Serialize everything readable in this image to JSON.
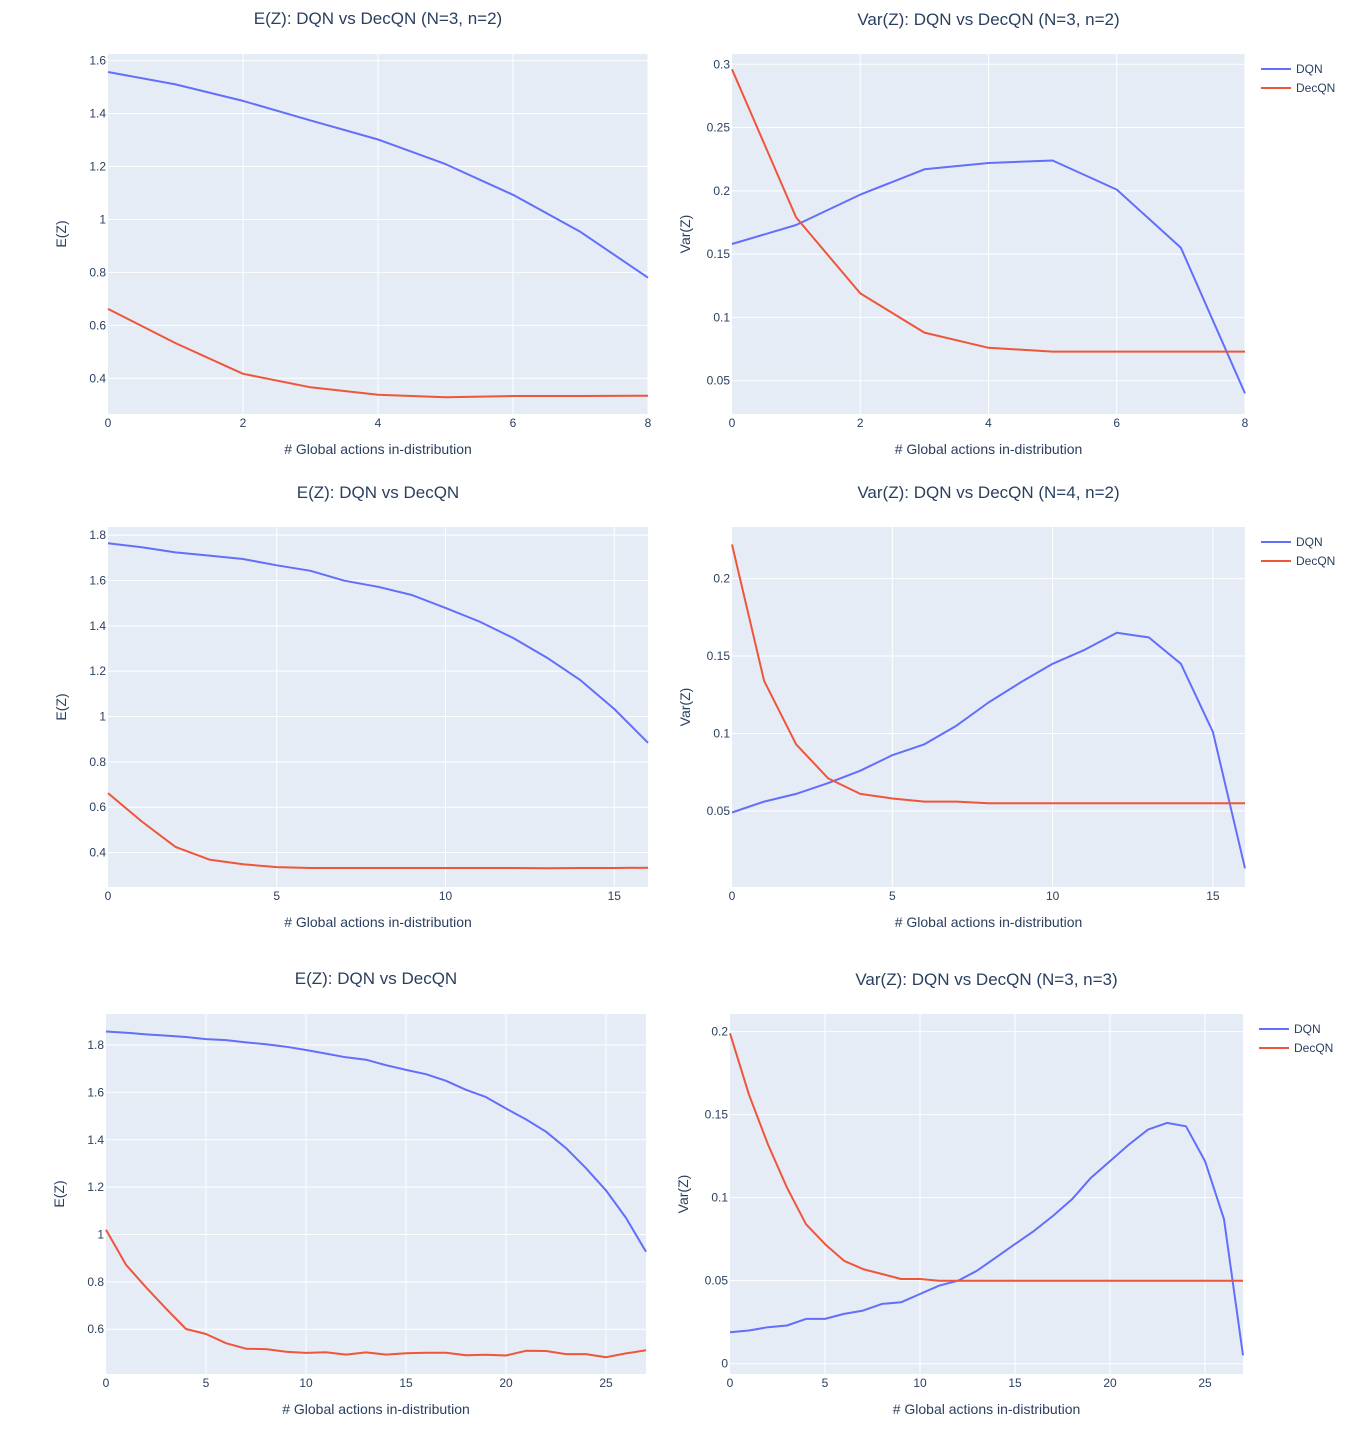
{
  "chart_data": [
    {
      "type": "line",
      "title": "E(Z): DQN vs DecQN (N=3, n=2)",
      "xlabel": "# Global actions in-distribution",
      "ylabel": "E(Z)",
      "xlim": [
        0,
        8
      ],
      "ylim": [
        0.265,
        1.625
      ],
      "xticks": [
        0,
        2,
        4,
        6,
        8
      ],
      "xtick_labels": [
        "0",
        "2",
        "4",
        "6",
        "8"
      ],
      "yticks": [
        0.4,
        0.6,
        0.8,
        1,
        1.2,
        1.4,
        1.6
      ],
      "ytick_labels": [
        "0.4",
        "0.6",
        "0.8",
        "1",
        "1.2",
        "1.4",
        "1.6"
      ],
      "legend": false,
      "series": [
        {
          "name": "DQN",
          "color": "#636efa",
          "x": [
            0,
            1,
            2,
            3,
            4,
            5,
            6,
            7,
            8
          ],
          "y": [
            1.557,
            1.51,
            1.448,
            1.374,
            1.302,
            1.209,
            1.093,
            0.953,
            0.78
          ]
        },
        {
          "name": "DecQN",
          "color": "#ef553b",
          "x": [
            0,
            1,
            2,
            3,
            4,
            5,
            6,
            7,
            8
          ],
          "y": [
            0.662,
            0.533,
            0.417,
            0.366,
            0.338,
            0.328,
            0.333,
            0.333,
            0.334
          ]
        }
      ]
    },
    {
      "type": "line",
      "title": "Var(Z): DQN vs DecQN (N=3, n=2)",
      "xlabel": "# Global actions in-distribution",
      "ylabel": "Var(Z)",
      "xlim": [
        0,
        8
      ],
      "ylim": [
        0.0237,
        0.3081
      ],
      "xticks": [
        0,
        2,
        4,
        6,
        8
      ],
      "xtick_labels": [
        "0",
        "2",
        "4",
        "6",
        "8"
      ],
      "yticks": [
        0.05,
        0.1,
        0.15,
        0.2,
        0.25,
        0.3
      ],
      "ytick_labels": [
        "0.05",
        "0.1",
        "0.15",
        "0.2",
        "0.25",
        "0.3"
      ],
      "legend": true,
      "legend_position": "top-right",
      "series": [
        {
          "name": "DQN",
          "color": "#636efa",
          "x": [
            0,
            1,
            2,
            3,
            4,
            5,
            6,
            7,
            8
          ],
          "y": [
            0.158,
            0.173,
            0.197,
            0.217,
            0.222,
            0.224,
            0.201,
            0.155,
            0.04
          ]
        },
        {
          "name": "DecQN",
          "color": "#ef553b",
          "x": [
            0,
            1,
            2,
            3,
            4,
            5,
            6,
            7,
            8
          ],
          "y": [
            0.296,
            0.179,
            0.119,
            0.088,
            0.076,
            0.073,
            0.073,
            0.073,
            0.073
          ]
        }
      ]
    },
    {
      "type": "line",
      "title": "E(Z): DQN vs DecQN",
      "xlabel": "# Global actions in-distribution",
      "ylabel": "E(Z)",
      "xlim": [
        0,
        16
      ],
      "ylim": [
        0.248,
        1.836
      ],
      "xticks": [
        0,
        5,
        10,
        15
      ],
      "xtick_labels": [
        "0",
        "5",
        "10",
        "15"
      ],
      "yticks": [
        0.4,
        0.6,
        0.8,
        1,
        1.2,
        1.4,
        1.6,
        1.8
      ],
      "ytick_labels": [
        "0.4",
        "0.6",
        "0.8",
        "1",
        "1.2",
        "1.4",
        "1.6",
        "1.8"
      ],
      "legend": false,
      "series": [
        {
          "name": "DQN",
          "color": "#636efa",
          "x": [
            0,
            1,
            2,
            3,
            4,
            5,
            6,
            7,
            8,
            9,
            10,
            11,
            12,
            13,
            14,
            15,
            16
          ],
          "y": [
            1.764,
            1.747,
            1.724,
            1.71,
            1.695,
            1.667,
            1.643,
            1.599,
            1.572,
            1.536,
            1.479,
            1.419,
            1.347,
            1.26,
            1.16,
            1.033,
            0.884
          ]
        },
        {
          "name": "DecQN",
          "color": "#ef553b",
          "x": [
            0,
            1,
            2,
            3,
            4,
            5,
            6,
            7,
            8,
            9,
            10,
            11,
            12,
            13,
            14,
            15,
            16
          ],
          "y": [
            0.662,
            0.537,
            0.425,
            0.369,
            0.348,
            0.336,
            0.332,
            0.332,
            0.332,
            0.332,
            0.332,
            0.332,
            0.332,
            0.331,
            0.332,
            0.332,
            0.333
          ]
        }
      ]
    },
    {
      "type": "line",
      "title": "Var(Z): DQN vs DecQN (N=4, n=2)",
      "xlabel": "# Global actions in-distribution",
      "ylabel": "Var(Z)",
      "xlim": [
        0,
        16
      ],
      "ylim": [
        0.0009,
        0.2333
      ],
      "xticks": [
        0,
        5,
        10,
        15
      ],
      "xtick_labels": [
        "0",
        "5",
        "10",
        "15"
      ],
      "yticks": [
        0.05,
        0.1,
        0.15,
        0.2
      ],
      "ytick_labels": [
        "0.05",
        "0.1",
        "0.15",
        "0.2"
      ],
      "legend": true,
      "legend_position": "top-right",
      "series": [
        {
          "name": "DQN",
          "color": "#636efa",
          "x": [
            0,
            1,
            2,
            3,
            4,
            5,
            6,
            7,
            8,
            9,
            10,
            11,
            12,
            13,
            14,
            15,
            16
          ],
          "y": [
            0.049,
            0.056,
            0.061,
            0.068,
            0.076,
            0.086,
            0.093,
            0.105,
            0.12,
            0.133,
            0.145,
            0.154,
            0.165,
            0.162,
            0.145,
            0.101,
            0.013
          ]
        },
        {
          "name": "DecQN",
          "color": "#ef553b",
          "x": [
            0,
            1,
            2,
            3,
            4,
            5,
            6,
            7,
            8,
            9,
            10,
            11,
            12,
            13,
            14,
            15,
            16
          ],
          "y": [
            0.222,
            0.134,
            0.093,
            0.071,
            0.061,
            0.058,
            0.056,
            0.056,
            0.055,
            0.055,
            0.055,
            0.055,
            0.055,
            0.055,
            0.055,
            0.055,
            0.055
          ]
        }
      ]
    },
    {
      "type": "line",
      "title": "E(Z): DQN vs DecQN",
      "xlabel": "# Global actions in-distribution",
      "ylabel": "E(Z)",
      "xlim": [
        0,
        27
      ],
      "ylim": [
        0.411,
        1.931
      ],
      "xticks": [
        0,
        5,
        10,
        15,
        20,
        25
      ],
      "xtick_labels": [
        "0",
        "5",
        "10",
        "15",
        "20",
        "25"
      ],
      "yticks": [
        0.6,
        0.8,
        1,
        1.2,
        1.4,
        1.6,
        1.8
      ],
      "ytick_labels": [
        "0.6",
        "0.8",
        "1",
        "1.2",
        "1.4",
        "1.6",
        "1.8"
      ],
      "legend": false,
      "series": [
        {
          "name": "DQN",
          "color": "#636efa",
          "x": [
            0,
            1,
            2,
            3,
            4,
            5,
            6,
            7,
            8,
            9,
            10,
            11,
            12,
            13,
            14,
            15,
            16,
            17,
            18,
            19,
            20,
            21,
            22,
            23,
            24,
            25,
            26,
            27
          ],
          "y": [
            1.857,
            1.852,
            1.845,
            1.84,
            1.834,
            1.825,
            1.821,
            1.811,
            1.803,
            1.793,
            1.779,
            1.764,
            1.748,
            1.738,
            1.715,
            1.695,
            1.677,
            1.649,
            1.611,
            1.58,
            1.532,
            1.486,
            1.434,
            1.365,
            1.28,
            1.186,
            1.07,
            0.927
          ]
        },
        {
          "name": "DecQN",
          "color": "#ef553b",
          "x": [
            0,
            1,
            2,
            3,
            4,
            5,
            6,
            7,
            8,
            9,
            10,
            11,
            12,
            13,
            14,
            15,
            16,
            17,
            18,
            19,
            20,
            21,
            22,
            23,
            24,
            25,
            26,
            27
          ],
          "y": [
            1.02,
            0.872,
            0.777,
            0.687,
            0.601,
            0.58,
            0.541,
            0.518,
            0.516,
            0.505,
            0.5,
            0.503,
            0.493,
            0.502,
            0.493,
            0.499,
            0.501,
            0.501,
            0.49,
            0.492,
            0.489,
            0.509,
            0.508,
            0.495,
            0.495,
            0.482,
            0.498,
            0.511
          ]
        }
      ]
    },
    {
      "type": "line",
      "title": "Var(Z): DQN vs DecQN (N=3, n=3)",
      "xlabel": "# Global actions in-distribution",
      "ylabel": "Var(Z)",
      "xlim": [
        0,
        27
      ],
      "ylim": [
        -0.0062,
        0.2106
      ],
      "xticks": [
        0,
        5,
        10,
        15,
        20,
        25
      ],
      "xtick_labels": [
        "0",
        "5",
        "10",
        "15",
        "20",
        "25"
      ],
      "yticks": [
        0,
        0.05,
        0.1,
        0.15,
        0.2
      ],
      "ytick_labels": [
        "0",
        "0.05",
        "0.1",
        "0.15",
        "0.2"
      ],
      "legend": true,
      "legend_position": "top-right",
      "series": [
        {
          "name": "DQN",
          "color": "#636efa",
          "x": [
            0,
            1,
            2,
            3,
            4,
            5,
            6,
            7,
            8,
            9,
            10,
            11,
            12,
            13,
            14,
            15,
            16,
            17,
            18,
            19,
            20,
            21,
            22,
            23,
            24,
            25,
            26,
            27
          ],
          "y": [
            0.019,
            0.02,
            0.022,
            0.023,
            0.027,
            0.027,
            0.03,
            0.032,
            0.036,
            0.037,
            0.042,
            0.047,
            0.05,
            0.056,
            0.064,
            0.072,
            0.08,
            0.089,
            0.099,
            0.112,
            0.122,
            0.132,
            0.141,
            0.145,
            0.143,
            0.122,
            0.087,
            0.005
          ]
        },
        {
          "name": "DecQN",
          "color": "#ef553b",
          "x": [
            0,
            1,
            2,
            3,
            4,
            5,
            6,
            7,
            8,
            9,
            10,
            11,
            12,
            13,
            14,
            15,
            16,
            17,
            18,
            19,
            20,
            21,
            22,
            23,
            24,
            25,
            26,
            27
          ],
          "y": [
            0.199,
            0.162,
            0.132,
            0.106,
            0.084,
            0.072,
            0.062,
            0.057,
            0.054,
            0.051,
            0.051,
            0.05,
            0.05,
            0.05,
            0.05,
            0.05,
            0.05,
            0.05,
            0.05,
            0.05,
            0.05,
            0.05,
            0.05,
            0.05,
            0.05,
            0.05,
            0.05,
            0.05
          ]
        }
      ]
    }
  ]
}
